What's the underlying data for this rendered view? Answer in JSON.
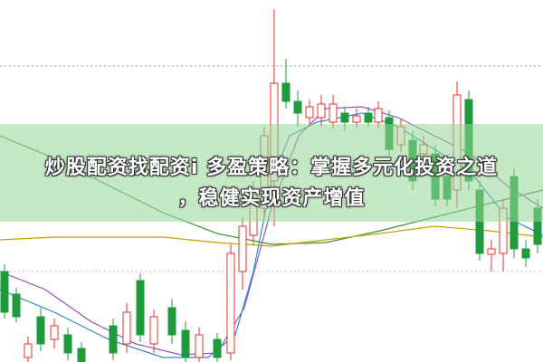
{
  "banner": {
    "line1": "炒股配资找配资i 多盈策略：掌握多元化投资之道",
    "line2": "，稳健实现资产增值"
  }
}
